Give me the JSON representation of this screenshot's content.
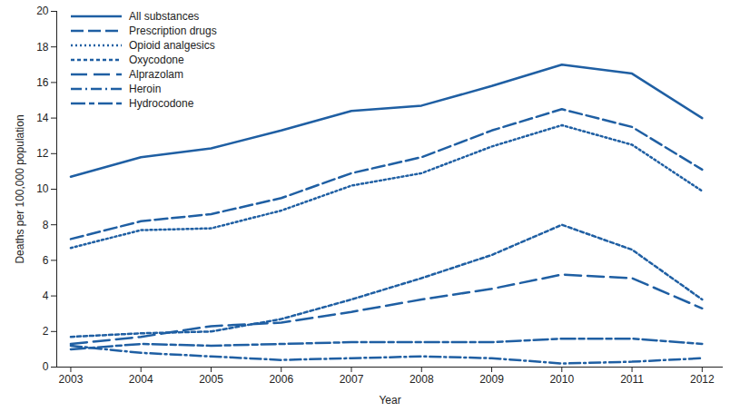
{
  "chart_data": {
    "type": "line",
    "x_label": "Year",
    "y_label": "Deaths per 100,000 population",
    "x": [
      2003,
      2004,
      2005,
      2006,
      2007,
      2008,
      2009,
      2010,
      2011,
      2012
    ],
    "xlim": [
      2002.8,
      2012.3
    ],
    "xticks": [
      2003,
      2004,
      2005,
      2006,
      2007,
      2008,
      2009,
      2010,
      2011,
      2012
    ],
    "ylim": [
      0,
      20
    ],
    "yticks": [
      0,
      2,
      4,
      6,
      8,
      10,
      12,
      14,
      16,
      18,
      20
    ],
    "grid": false,
    "legend": "top-left",
    "series": [
      {
        "name": "All substances",
        "color": "#1f5fa3",
        "line_style": "solid",
        "values": [
          10.7,
          11.8,
          12.3,
          13.3,
          14.4,
          14.7,
          15.8,
          17.0,
          16.5,
          14.0
        ]
      },
      {
        "name": "Prescription drugs",
        "color": "#1f5fa3",
        "line_style": "dashed",
        "values": [
          7.2,
          8.2,
          8.6,
          9.5,
          10.9,
          11.8,
          13.3,
          14.5,
          13.5,
          11.1
        ]
      },
      {
        "name": "Opioid analgesics",
        "color": "#1f5fa3",
        "line_style": "dotted",
        "values": [
          6.7,
          7.7,
          7.8,
          8.8,
          10.2,
          10.9,
          12.4,
          13.6,
          12.5,
          9.9
        ]
      },
      {
        "name": "Oxycodone",
        "color": "#1f5fa3",
        "line_style": "short-dashed",
        "values": [
          1.7,
          1.9,
          2.0,
          2.7,
          3.8,
          5.0,
          6.3,
          8.0,
          6.6,
          3.8
        ]
      },
      {
        "name": "Alprazolam",
        "color": "#1f5fa3",
        "line_style": "long-dashed",
        "values": [
          1.3,
          1.7,
          2.3,
          2.5,
          3.1,
          3.8,
          4.4,
          5.2,
          5.0,
          3.3
        ]
      },
      {
        "name": "Heroin",
        "color": "#1f5fa3",
        "line_style": "dash-dot",
        "values": [
          1.2,
          0.8,
          0.6,
          0.4,
          0.5,
          0.6,
          0.5,
          0.2,
          0.3,
          0.5
        ]
      },
      {
        "name": "Hydrocodone",
        "color": "#1f5fa3",
        "line_style": "long-dash-dot",
        "values": [
          1.0,
          1.3,
          1.2,
          1.3,
          1.4,
          1.4,
          1.4,
          1.6,
          1.6,
          1.3
        ]
      }
    ]
  }
}
